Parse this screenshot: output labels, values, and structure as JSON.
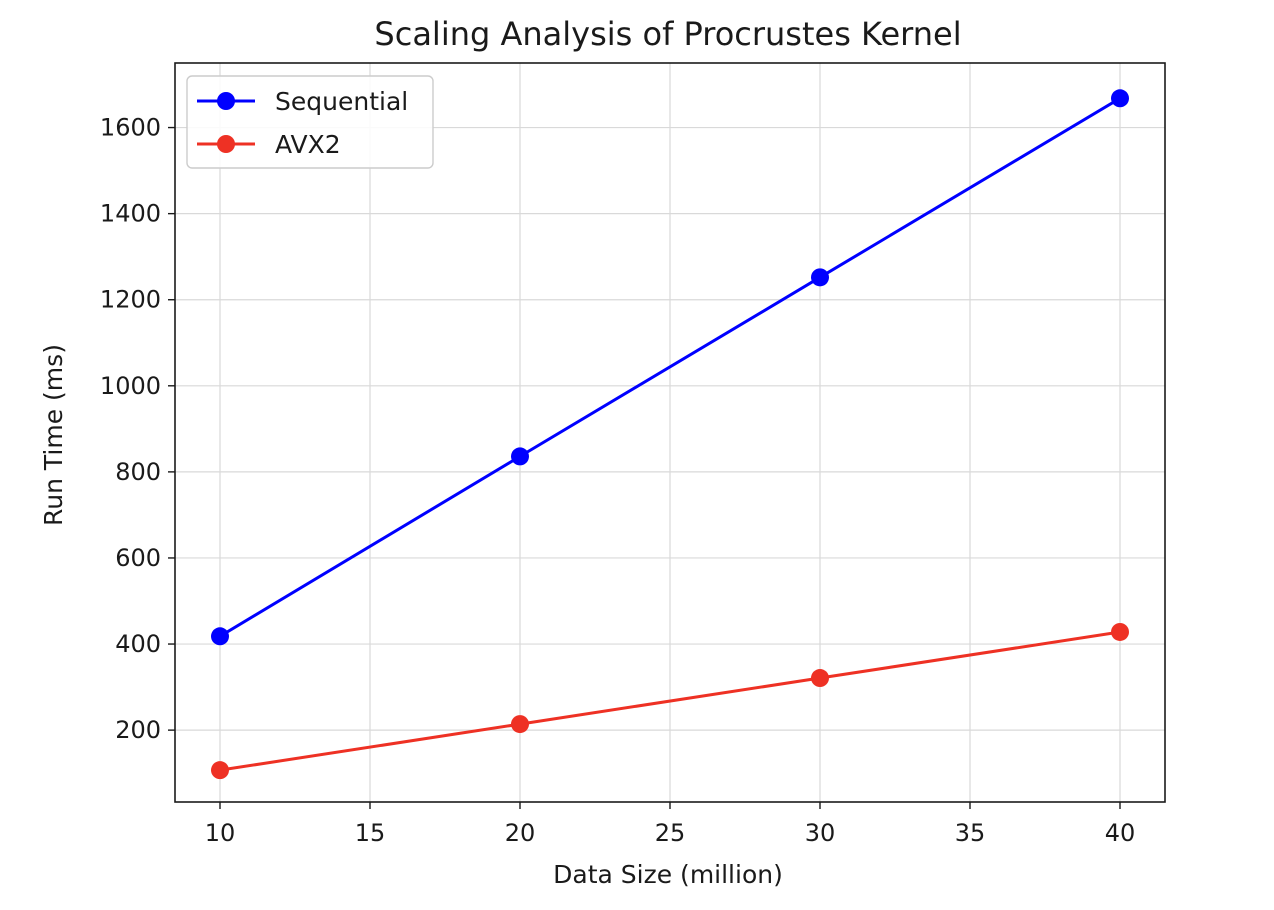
{
  "chart_data": {
    "type": "line",
    "title": "Scaling Analysis of Procrustes Kernel",
    "xlabel": "Data Size (million)",
    "ylabel": "Run Time (ms)",
    "x": [
      10,
      20,
      30,
      40
    ],
    "xlim": [
      8.5,
      41.5
    ],
    "ylim": [
      33,
      1750
    ],
    "xticks": [
      10,
      15,
      20,
      25,
      30,
      35,
      40
    ],
    "yticks": [
      200,
      400,
      600,
      800,
      1000,
      1200,
      1400,
      1600
    ],
    "grid": true,
    "legend_position": "top-left",
    "series": [
      {
        "name": "Sequential",
        "color": "#0000ff",
        "values": [
          418,
          836,
          1252,
          1668
        ]
      },
      {
        "name": "AVX2",
        "color": "#ee3124",
        "values": [
          107,
          214,
          321,
          428
        ]
      }
    ]
  }
}
